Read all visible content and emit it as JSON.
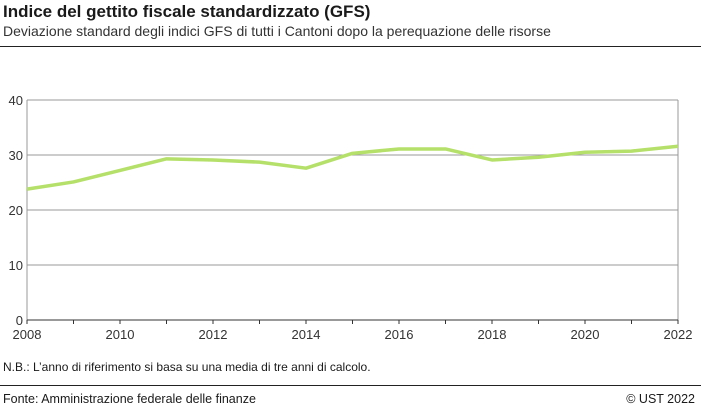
{
  "header": {
    "title": "Indice del gettito fiscale standardizzato (GFS)",
    "subtitle": "Deviazione standard degli indici GFS di tutti i Cantoni dopo la perequazione delle risorse"
  },
  "footer": {
    "note": "N.B.: L’anno di riferimento si basa su una media di tre anni di calcolo.",
    "source": "Fonte: Amministrazione federale delle finanze",
    "copyright": "© UST 2022"
  },
  "chart_data": {
    "type": "line",
    "title": "Indice del gettito fiscale standardizzato (GFS)",
    "xlabel": "",
    "ylabel": "",
    "x": [
      2008,
      2009,
      2010,
      2011,
      2012,
      2013,
      2014,
      2015,
      2016,
      2017,
      2018,
      2019,
      2020,
      2021,
      2022
    ],
    "series": [
      {
        "values": [
          23.8,
          25.1,
          27.2,
          29.3,
          29.1,
          28.7,
          27.6,
          30.3,
          31.1,
          31.1,
          29.1,
          29.6,
          30.5,
          30.7,
          31.6
        ],
        "color": "#b5e06a"
      }
    ],
    "xlim": [
      2008,
      2022
    ],
    "ylim": [
      0,
      40
    ],
    "xticks": [
      2008,
      2010,
      2012,
      2014,
      2016,
      2018,
      2020,
      2022
    ],
    "yticks": [
      0,
      10,
      20,
      30,
      40
    ],
    "grid": true,
    "legend": "none"
  }
}
